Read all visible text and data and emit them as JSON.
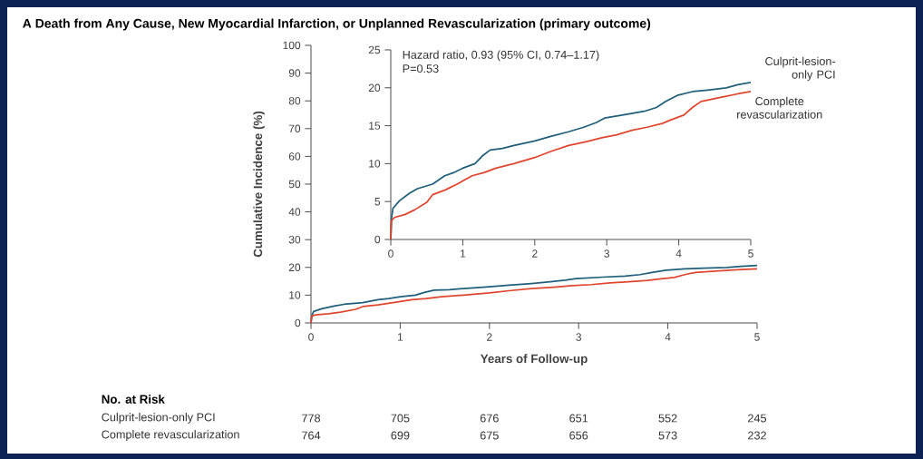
{
  "chart_data": [
    {
      "type": "line",
      "title": "A  Death from Any Cause, New Myocardial Infarction, or Unplanned Revascularization (primary outcome)",
      "xlabel": "Years of Follow-up",
      "ylabel": "Cumulative Incidence (%)",
      "xlim": [
        0,
        5
      ],
      "ylim": [
        0,
        100
      ],
      "xticks": [
        0,
        1,
        2,
        3,
        4,
        5
      ],
      "yticks": [
        0,
        10,
        20,
        30,
        40,
        50,
        60,
        70,
        80,
        90,
        100
      ],
      "series": [
        {
          "color": "#1f5f7a",
          "x": [
            0,
            0.01,
            0.03,
            0.12,
            0.26,
            0.37,
            0.58,
            0.75,
            0.87,
            1.0,
            1.17,
            1.27,
            1.38,
            1.55,
            1.71,
            2.0,
            2.22,
            2.47,
            2.68,
            2.85,
            2.97,
            3.27,
            3.52,
            3.69,
            3.82,
            3.98,
            4.19,
            4.4,
            4.66,
            4.82,
            5.0
          ],
          "values": [
            0,
            2.8,
            4.1,
            5.1,
            6.1,
            6.7,
            7.3,
            8.4,
            8.8,
            9.4,
            10.0,
            11.0,
            11.8,
            12.0,
            12.4,
            13.0,
            13.6,
            14.2,
            14.8,
            15.4,
            16.0,
            16.5,
            16.9,
            17.4,
            18.2,
            19.0,
            19.5,
            19.7,
            20.0,
            20.4,
            20.7
          ]
        },
        {
          "color": "#e0452e",
          "x": [
            0,
            0.01,
            0.05,
            0.2,
            0.33,
            0.5,
            0.58,
            0.75,
            0.92,
            1.13,
            1.29,
            1.46,
            1.71,
            2.0,
            2.22,
            2.47,
            2.72,
            2.93,
            3.14,
            3.35,
            3.56,
            3.77,
            3.9,
            4.07,
            4.19,
            4.31,
            4.61,
            4.82,
            5.0
          ],
          "values": [
            0,
            2.5,
            2.9,
            3.3,
            3.9,
            4.9,
            5.9,
            6.5,
            7.3,
            8.4,
            8.8,
            9.4,
            10.0,
            10.8,
            11.6,
            12.4,
            12.9,
            13.4,
            13.8,
            14.4,
            14.8,
            15.3,
            15.8,
            16.4,
            17.4,
            18.2,
            18.8,
            19.2,
            19.5
          ]
        }
      ],
      "annotations": [
        "No. at Risk",
        "Culprit-lesion-only PCI",
        "778",
        "705",
        "676",
        "651",
        "552",
        "245",
        "Complete revascularization",
        "764",
        "699",
        "675",
        "656",
        "573",
        "232"
      ]
    },
    {
      "type": "line",
      "xlim": [
        0,
        5
      ],
      "ylim": [
        0,
        25
      ],
      "xticks": [
        0,
        1,
        2,
        3,
        4,
        5
      ],
      "yticks": [
        0,
        5,
        10,
        15,
        20,
        25
      ],
      "series": [
        {
          "name": "Culprit-lesion-only PCI",
          "color": "#1f5f7a",
          "x": [
            0,
            0.01,
            0.03,
            0.12,
            0.26,
            0.37,
            0.58,
            0.75,
            0.87,
            1.0,
            1.17,
            1.27,
            1.38,
            1.55,
            1.71,
            2.0,
            2.22,
            2.47,
            2.68,
            2.85,
            2.97,
            3.27,
            3.52,
            3.69,
            3.82,
            3.98,
            4.19,
            4.4,
            4.66,
            4.82,
            5.0
          ],
          "values": [
            0,
            2.8,
            4.1,
            5.1,
            6.1,
            6.7,
            7.3,
            8.4,
            8.8,
            9.4,
            10.0,
            11.0,
            11.8,
            12.0,
            12.4,
            13.0,
            13.6,
            14.2,
            14.8,
            15.4,
            16.0,
            16.5,
            16.9,
            17.4,
            18.2,
            19.0,
            19.5,
            19.7,
            20.0,
            20.4,
            20.7
          ]
        },
        {
          "name": "Complete revascularization",
          "color": "#e0452e",
          "x": [
            0,
            0.01,
            0.05,
            0.2,
            0.33,
            0.5,
            0.58,
            0.75,
            0.92,
            1.13,
            1.29,
            1.46,
            1.71,
            2.0,
            2.22,
            2.47,
            2.72,
            2.93,
            3.14,
            3.35,
            3.56,
            3.77,
            3.9,
            4.07,
            4.19,
            4.31,
            4.61,
            4.82,
            5.0
          ],
          "values": [
            0,
            2.5,
            2.9,
            3.3,
            3.9,
            4.9,
            5.9,
            6.5,
            7.3,
            8.4,
            8.8,
            9.4,
            10.0,
            10.8,
            11.6,
            12.4,
            12.9,
            13.4,
            13.8,
            14.4,
            14.8,
            15.3,
            15.8,
            16.4,
            17.4,
            18.2,
            18.8,
            19.2,
            19.5
          ]
        }
      ],
      "annotations": [
        "Hazard ratio, 0.93 (95% CI, 0.74–1.17)",
        "P=0.53"
      ]
    }
  ]
}
